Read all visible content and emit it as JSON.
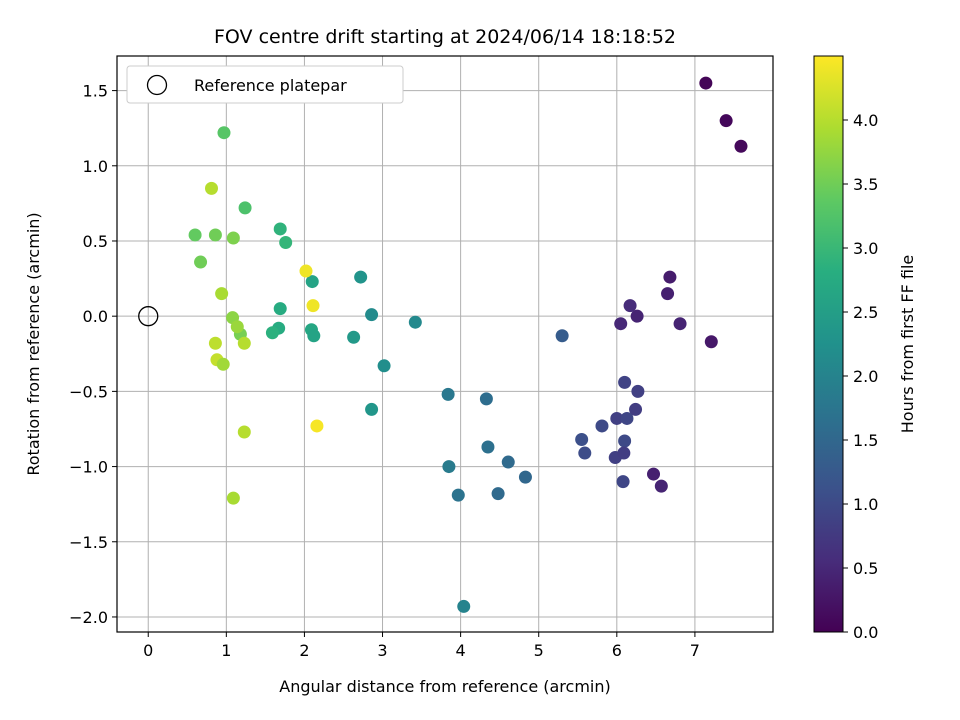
{
  "chart_data": {
    "type": "scatter",
    "title": "FOV centre drift starting at 2024/06/14 18:18:52",
    "xlabel": "Angular distance from reference (arcmin)",
    "ylabel": "Rotation from reference (arcmin)",
    "xlim": [
      -0.4,
      8.0
    ],
    "ylim": [
      -2.1,
      1.73
    ],
    "xticks": [
      0,
      1,
      2,
      3,
      4,
      5,
      6,
      7
    ],
    "xtick_labels": [
      "0",
      "1",
      "2",
      "3",
      "4",
      "5",
      "6",
      "7"
    ],
    "yticks": [
      1.5,
      1.0,
      0.5,
      0.0,
      -0.5,
      -1.0,
      -1.5,
      -2.0
    ],
    "ytick_labels": [
      "1.5",
      "1.0",
      "0.5",
      "0.0",
      "−0.5",
      "−1.0",
      "−1.5",
      "−2.0"
    ],
    "grid": true,
    "legend": {
      "position": "upper-left",
      "entries": [
        {
          "label": "Reference platepar",
          "marker": "open-circle",
          "color": "#000000"
        }
      ]
    },
    "reference_point": {
      "x": 0.0,
      "y": 0.0
    },
    "colorbar": {
      "label": "Hours from first FF file",
      "colormap": "viridis",
      "vmin": 0.0,
      "vmax": 4.5,
      "ticks": [
        0.0,
        0.5,
        1.0,
        1.5,
        2.0,
        2.5,
        3.0,
        3.5,
        4.0
      ],
      "tick_labels": [
        "0.0",
        "0.5",
        "1.0",
        "1.5",
        "2.0",
        "2.5",
        "3.0",
        "3.5",
        "4.0"
      ]
    },
    "series": [
      {
        "points": [
          {
            "x": 7.14,
            "y": 1.55,
            "c": 0.05
          },
          {
            "x": 7.4,
            "y": 1.3,
            "c": 0.08
          },
          {
            "x": 7.59,
            "y": 1.13,
            "c": 0.1
          },
          {
            "x": 6.68,
            "y": 0.26,
            "c": 0.35
          },
          {
            "x": 6.65,
            "y": 0.15,
            "c": 0.4
          },
          {
            "x": 6.17,
            "y": 0.07,
            "c": 0.55
          },
          {
            "x": 6.26,
            "y": 0.0,
            "c": 0.45
          },
          {
            "x": 6.05,
            "y": -0.05,
            "c": 0.5
          },
          {
            "x": 6.81,
            "y": -0.05,
            "c": 0.45
          },
          {
            "x": 7.21,
            "y": -0.17,
            "c": 0.3
          },
          {
            "x": 6.47,
            "y": -1.05,
            "c": 0.4
          },
          {
            "x": 6.57,
            "y": -1.13,
            "c": 0.45
          },
          {
            "x": 6.1,
            "y": -0.44,
            "c": 0.9
          },
          {
            "x": 6.27,
            "y": -0.5,
            "c": 0.85
          },
          {
            "x": 6.24,
            "y": -0.62,
            "c": 0.8
          },
          {
            "x": 6.0,
            "y": -0.68,
            "c": 0.85
          },
          {
            "x": 6.13,
            "y": -0.68,
            "c": 0.95
          },
          {
            "x": 5.81,
            "y": -0.73,
            "c": 1.0
          },
          {
            "x": 5.55,
            "y": -0.82,
            "c": 1.1
          },
          {
            "x": 6.1,
            "y": -0.83,
            "c": 1.0
          },
          {
            "x": 5.59,
            "y": -0.91,
            "c": 1.05
          },
          {
            "x": 5.98,
            "y": -0.94,
            "c": 0.85
          },
          {
            "x": 6.09,
            "y": -0.91,
            "c": 0.8
          },
          {
            "x": 6.08,
            "y": -1.1,
            "c": 0.95
          },
          {
            "x": 5.3,
            "y": -0.13,
            "c": 1.3
          },
          {
            "x": 4.33,
            "y": -0.55,
            "c": 1.6
          },
          {
            "x": 4.35,
            "y": -0.87,
            "c": 1.65
          },
          {
            "x": 4.61,
            "y": -0.97,
            "c": 1.55
          },
          {
            "x": 4.83,
            "y": -1.07,
            "c": 1.5
          },
          {
            "x": 4.48,
            "y": -1.18,
            "c": 1.55
          },
          {
            "x": 3.84,
            "y": -0.52,
            "c": 1.8
          },
          {
            "x": 3.85,
            "y": -1.0,
            "c": 1.85
          },
          {
            "x": 3.97,
            "y": -1.19,
            "c": 1.7
          },
          {
            "x": 4.04,
            "y": -1.93,
            "c": 2.0
          },
          {
            "x": 3.42,
            "y": -0.04,
            "c": 2.1
          },
          {
            "x": 3.02,
            "y": -0.33,
            "c": 2.2
          },
          {
            "x": 2.86,
            "y": 0.01,
            "c": 2.15
          },
          {
            "x": 2.86,
            "y": -0.62,
            "c": 2.35
          },
          {
            "x": 2.72,
            "y": 0.26,
            "c": 2.3
          },
          {
            "x": 2.63,
            "y": -0.14,
            "c": 2.4
          },
          {
            "x": 2.1,
            "y": 0.23,
            "c": 2.6
          },
          {
            "x": 2.09,
            "y": -0.09,
            "c": 2.65
          },
          {
            "x": 2.12,
            "y": -0.13,
            "c": 2.6
          },
          {
            "x": 1.69,
            "y": 0.05,
            "c": 2.75
          },
          {
            "x": 1.67,
            "y": -0.08,
            "c": 2.75
          },
          {
            "x": 1.59,
            "y": -0.11,
            "c": 2.85
          },
          {
            "x": 1.69,
            "y": 0.58,
            "c": 2.9
          },
          {
            "x": 1.76,
            "y": 0.49,
            "c": 2.95
          },
          {
            "x": 1.24,
            "y": 0.72,
            "c": 3.2
          },
          {
            "x": 0.97,
            "y": 1.22,
            "c": 3.3
          },
          {
            "x": 0.6,
            "y": 0.54,
            "c": 3.4
          },
          {
            "x": 0.86,
            "y": 0.54,
            "c": 3.5
          },
          {
            "x": 0.67,
            "y": 0.36,
            "c": 3.5
          },
          {
            "x": 1.09,
            "y": 0.52,
            "c": 3.6
          },
          {
            "x": 1.18,
            "y": -0.12,
            "c": 3.55
          },
          {
            "x": 1.08,
            "y": -0.01,
            "c": 3.7
          },
          {
            "x": 1.14,
            "y": -0.07,
            "c": 3.8
          },
          {
            "x": 1.23,
            "y": -0.18,
            "c": 4.0
          },
          {
            "x": 0.94,
            "y": 0.15,
            "c": 3.9
          },
          {
            "x": 0.81,
            "y": 0.85,
            "c": 4.0
          },
          {
            "x": 0.86,
            "y": -0.18,
            "c": 4.05
          },
          {
            "x": 0.88,
            "y": -0.29,
            "c": 4.1
          },
          {
            "x": 0.96,
            "y": -0.32,
            "c": 3.85
          },
          {
            "x": 1.23,
            "y": -0.77,
            "c": 4.0
          },
          {
            "x": 1.09,
            "y": -1.21,
            "c": 3.9
          },
          {
            "x": 2.02,
            "y": 0.3,
            "c": 4.4
          },
          {
            "x": 2.11,
            "y": 0.07,
            "c": 4.4
          },
          {
            "x": 2.16,
            "y": -0.73,
            "c": 4.45
          }
        ]
      }
    ]
  }
}
